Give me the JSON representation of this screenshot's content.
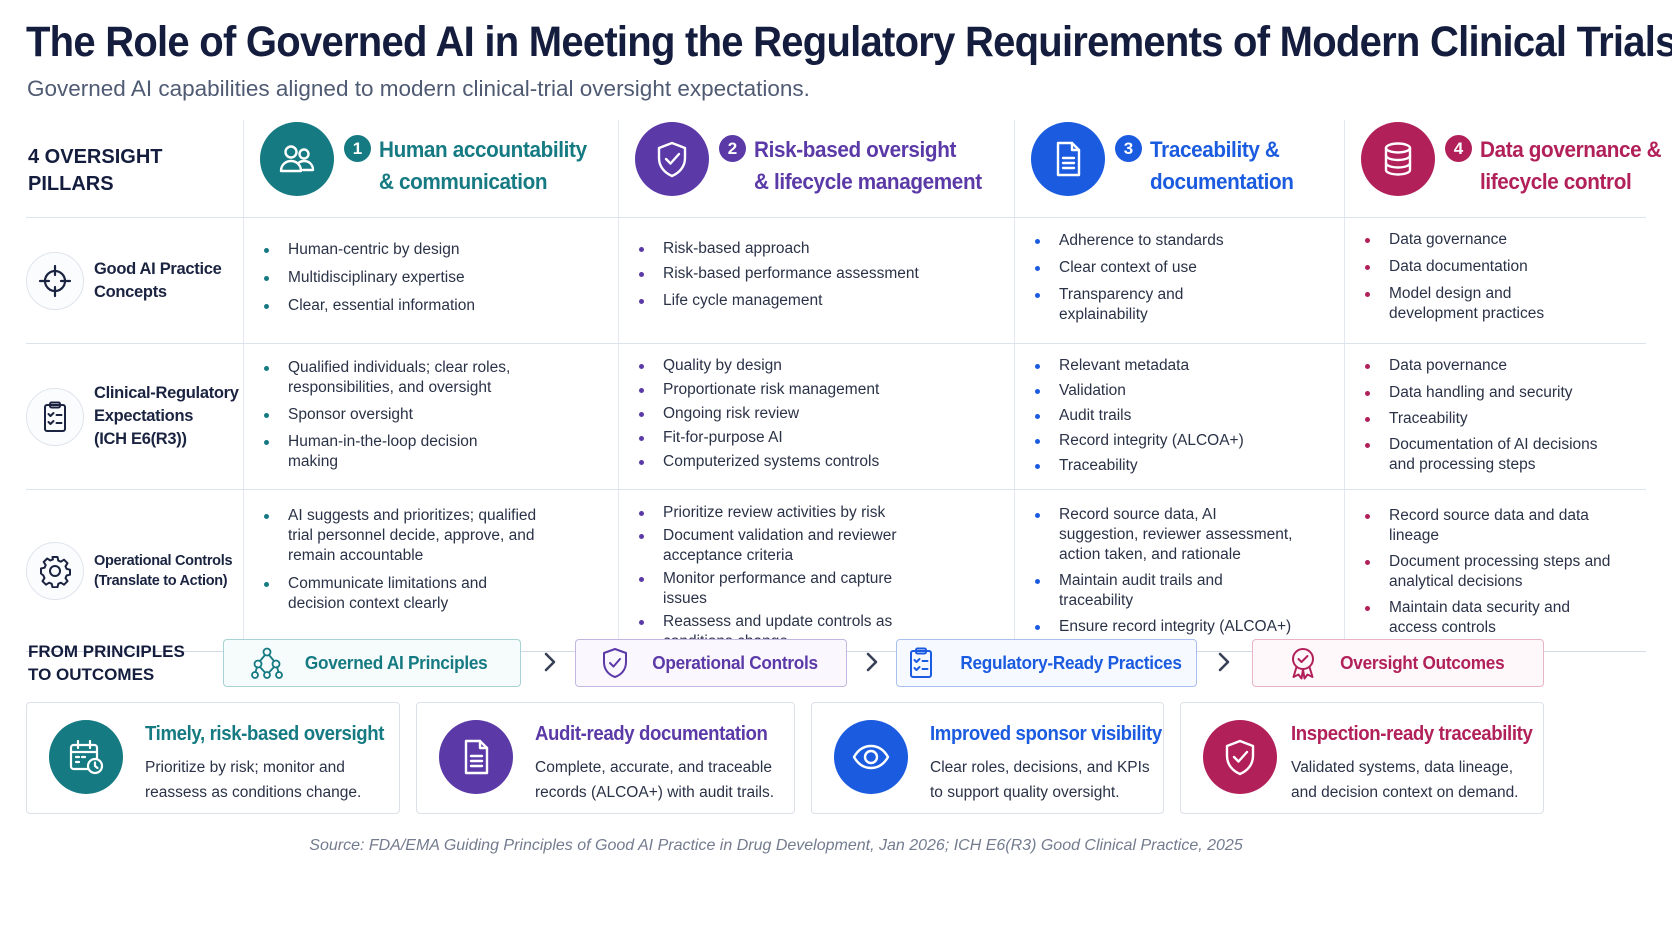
{
  "title": "The Role of Governed AI in Meeting the Regulatory Requirements of Modern Clinical Trials",
  "subtitle": "Governed AI capabilities aligned to modern clinical-trial oversight expectations.",
  "pillars_label": "4 OVERSIGHT PILLARS",
  "pillars": [
    {
      "num": "1",
      "line1": "Human accountability",
      "line2": "& communication",
      "color": "#157a82",
      "icon": "people-icon"
    },
    {
      "num": "2",
      "line1": "Risk-based oversight",
      "line2": "& lifecycle management",
      "color": "#5b3aa8",
      "icon": "shield-check-icon"
    },
    {
      "num": "3",
      "line1": "Traceability &",
      "line2": "documentation",
      "color": "#1a5be0",
      "icon": "document-icon"
    },
    {
      "num": "4",
      "line1": "Data governance &",
      "line2": "lifecycle control",
      "color": "#b2205a",
      "icon": "database-icon"
    }
  ],
  "rows": [
    {
      "label": "Good AI Practice Concepts",
      "label_lines": [
        "Good AI Practice",
        "Concepts"
      ],
      "icon": "crosshair-icon",
      "cells": [
        [
          "Human-centric by design",
          "Multidisciplinary expertise",
          "Clear, essential information"
        ],
        [
          "Risk-based approach",
          "Risk-based performance assessment",
          "Life cycle management"
        ],
        [
          "Adherence to standards",
          "Clear context of use",
          "Transparency and explainability"
        ],
        [
          "Data governance",
          "Data documentation",
          "Model design and development practices"
        ]
      ]
    },
    {
      "label": "Clinical-Regulatory Expectations (ICH E6(R3))",
      "label_lines": [
        "Clinical-Regulatory",
        "Expectations",
        "(ICH E6(R3))"
      ],
      "icon": "clipboard-check-icon",
      "cells": [
        [
          "Qualified individuals; clear roles, responsibilities, and oversight",
          "Sponsor oversight",
          "Human-in-the-loop decision making"
        ],
        [
          "Quality by design",
          "Proportionate risk management",
          "Ongoing risk review",
          "Fit-for-purpose AI",
          "Computerized systems controls"
        ],
        [
          "Relevant metadata",
          "Validation",
          "Audit trails",
          "Record integrity (ALCOA+)",
          "Traceability"
        ],
        [
          "Data povernance",
          "Data handling and security",
          "Traceability",
          "Documentation of AI decisions and processing steps"
        ]
      ]
    },
    {
      "label": "Operational Controls (Translate to Action)",
      "label_lines": [
        "Operational Controls",
        "(Translate to Action)"
      ],
      "icon": "gear-icon",
      "cells": [
        [
          "AI suggests and prioritizes; qualified trial personnel decide, approve, and remain accountable",
          "Communicate limitations and decision context clearly"
        ],
        [
          "Prioritize review activities by risk",
          "Document validation and reviewer acceptance criteria",
          "Monitor performance and capture issues",
          "Reassess and update controls as conditions change"
        ],
        [
          "Record source data, AI suggestion, reviewer assessment, action taken, and rationale",
          "Maintain audit trails and traceability",
          "Ensure record integrity (ALCOA+)"
        ],
        [
          "Record source data and data lineage",
          "Document processing steps and analytical decisions",
          "Maintain data security and access controls"
        ]
      ]
    }
  ],
  "flow": {
    "label_lines": [
      "FROM PRINCIPLES",
      "TO OUTCOMES"
    ],
    "steps": [
      {
        "label": "Governed AI Principles",
        "icon": "network-icon",
        "color": "#157a82"
      },
      {
        "label": "Operational Controls",
        "icon": "shield-check-icon",
        "color": "#5b3aa8"
      },
      {
        "label": "Regulatory-Ready Practices",
        "icon": "clipboard-check-icon",
        "color": "#1a5be0"
      },
      {
        "label": "Oversight Outcomes",
        "icon": "award-ribbon-icon",
        "color": "#b2205a"
      }
    ]
  },
  "outcomes": [
    {
      "title": "Timely, risk-based oversight",
      "body": "Prioritize by risk; monitor and reassess as conditions change.",
      "color": "#157a82",
      "icon": "calendar-clock-icon"
    },
    {
      "title": "Audit-ready documentation",
      "body": "Complete, accurate, and traceable records (ALCOA+) with audit trails.",
      "color": "#5b3aa8",
      "icon": "document-icon"
    },
    {
      "title": "Improved sponsor visibility",
      "body": "Clear roles, decisions, and KPIs to support quality oversight.",
      "color": "#1a5be0",
      "icon": "eye-icon"
    },
    {
      "title": "Inspection-ready traceability",
      "body": "Validated systems, data lineage, and decision context on demand.",
      "color": "#b2205a",
      "icon": "shield-check-icon"
    }
  ],
  "source": "Source: FDA/EMA Guiding Principles of Good AI Practice in Drug Development, Jan 2026; ICH E6(R3) Good Clinical Practice, 2025"
}
